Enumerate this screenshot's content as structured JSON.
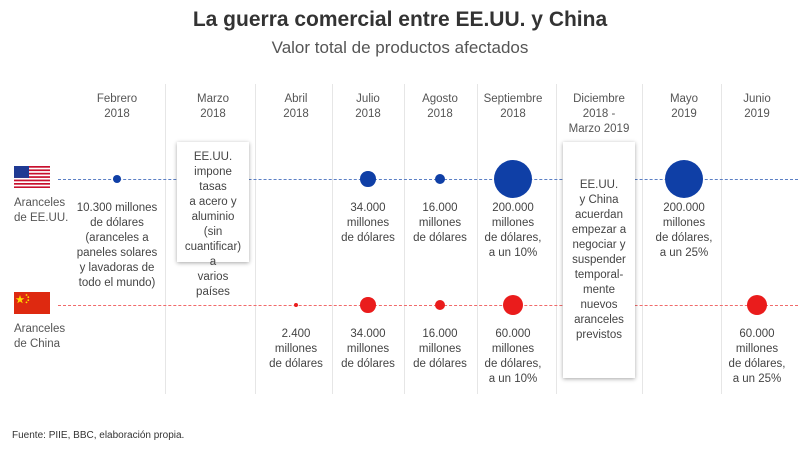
{
  "chart_data": {
    "type": "timeline-bubble",
    "title": "La guerra comercial entre EE.UU. y China",
    "subtitle": "Valor total de productos afectados",
    "unit": "millones de dólares",
    "periods": [
      {
        "label": "Febrero\n2018"
      },
      {
        "label": "Marzo\n2018"
      },
      {
        "label": "Abril\n2018"
      },
      {
        "label": "Julio\n2018"
      },
      {
        "label": "Agosto\n2018"
      },
      {
        "label": "Septiembre\n2018"
      },
      {
        "label": "Diciembre\n2018 -\nMarzo 2019"
      },
      {
        "label": "Mayo\n2019"
      },
      {
        "label": "Junio\n2019"
      }
    ],
    "series": [
      {
        "name": "Aranceles\nde EE.UU.",
        "color": "#0f3fa6",
        "points": [
          {
            "period": 0,
            "value": 10300,
            "label": "10.300 millones\nde dólares\n(aranceles a\npaneles solares\ny lavadoras de\ntodo el mundo)"
          },
          {
            "period": 3,
            "value": 34000,
            "label": "34.000\nmillones\nde dólares"
          },
          {
            "period": 4,
            "value": 16000,
            "label": "16.000\nmillones\nde dólares"
          },
          {
            "period": 5,
            "value": 200000,
            "label": "200.000\nmillones\nde dólares,\na un 10%"
          },
          {
            "period": 7,
            "value": 200000,
            "label": "200.000\nmillones\nde dólares,\na un 25%"
          }
        ]
      },
      {
        "name": "Aranceles\nde China",
        "color": "#ea1c1c",
        "points": [
          {
            "period": 2,
            "value": 2400,
            "label": "2.400\nmillones\nde dólares"
          },
          {
            "period": 3,
            "value": 34000,
            "label": "34.000\nmillones\nde dólares"
          },
          {
            "period": 4,
            "value": 16000,
            "label": "16.000\nmillones\nde dólares"
          },
          {
            "period": 5,
            "value": 60000,
            "label": "60.000\nmillones\nde dólares,\na un 10%"
          },
          {
            "period": 8,
            "value": 60000,
            "label": "60.000\nmillones\nde dólares,\na un 25%"
          }
        ]
      }
    ],
    "annotations": [
      {
        "period": 1,
        "text": "EE.UU.\nimpone tasas\na acero y\naluminio (sin\ncuantificar) a\nvarios países"
      },
      {
        "period": 6,
        "text": "EE.UU.\ny China\nacuerdan\nempezar a\nnegociar y\nsuspender\ntemporal-\nmente\nnuevos\naranceles\nprevistos"
      }
    ]
  },
  "source": "Fuente: PIIE, BBC, elaboración propia.",
  "flags": {
    "us": "us-flag-icon",
    "cn": "china-flag-icon"
  }
}
